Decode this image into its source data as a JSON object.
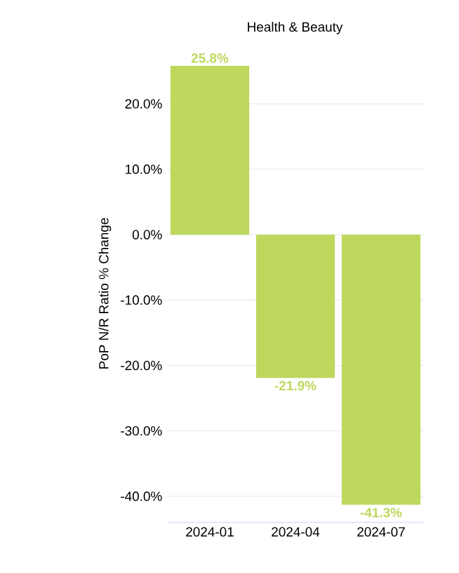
{
  "chart_data": {
    "type": "bar",
    "title": "Health & Beauty",
    "ylabel": "PoP N/R Ratio % Change",
    "categories": [
      "2024-01",
      "2024-04",
      "2024-07"
    ],
    "values": [
      25.8,
      -21.9,
      -41.3
    ],
    "value_labels": [
      "25.8%",
      "-21.9%",
      "-41.3%"
    ],
    "color": "#bdd85c",
    "ylim": [
      -44,
      26
    ],
    "yticks": [
      {
        "value": -40,
        "label": "-40.0%"
      },
      {
        "value": -30,
        "label": "-30.0%"
      },
      {
        "value": -20,
        "label": "-20.0%"
      },
      {
        "value": -10,
        "label": "-10.0%"
      },
      {
        "value": 0,
        "label": "0.0%"
      },
      {
        "value": 10,
        "label": "10.0%"
      },
      {
        "value": 20,
        "label": "20.0%"
      }
    ],
    "grid": "y"
  }
}
